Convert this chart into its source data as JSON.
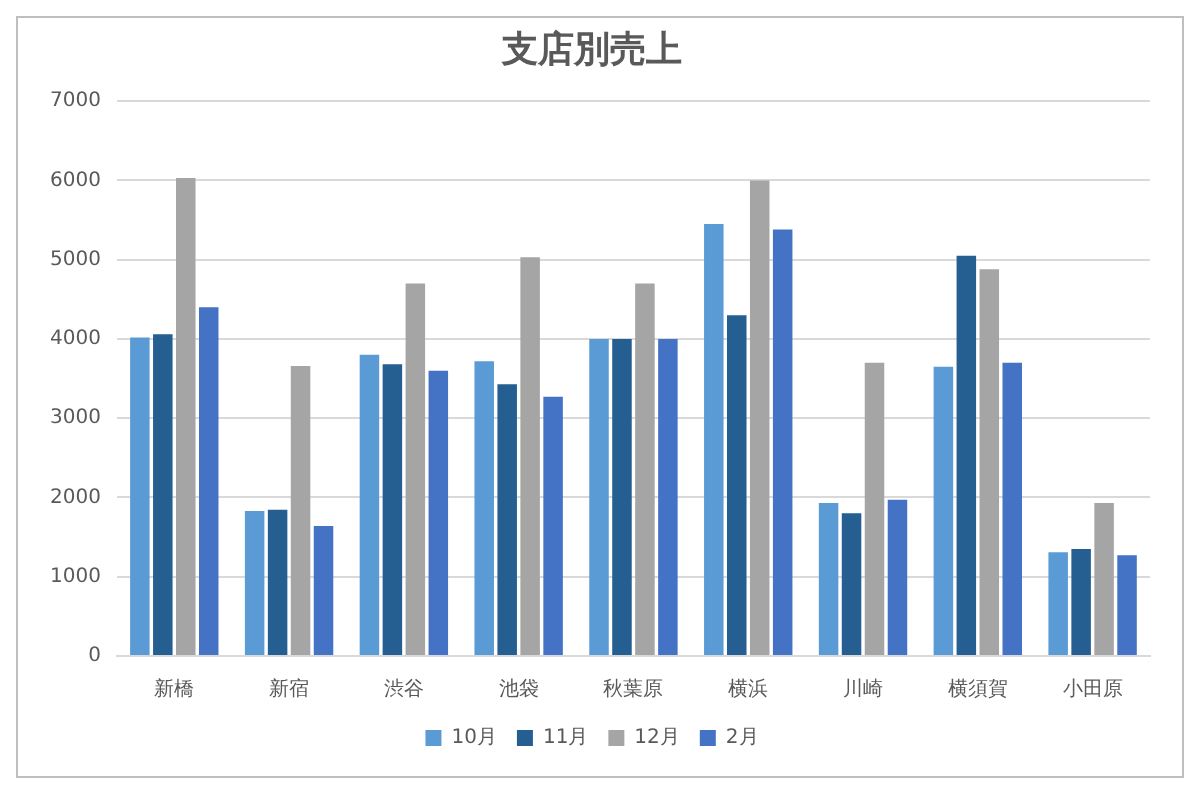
{
  "chart_data": {
    "type": "bar",
    "title": "支店別売上",
    "categories": [
      "新橋",
      "新宿",
      "渋谷",
      "池袋",
      "秋葉原",
      "横浜",
      "川崎",
      "横須賀",
      "小田原"
    ],
    "series": [
      {
        "name": "10月",
        "color": "#5b9bd5",
        "values": [
          4018,
          1830,
          3800,
          3720,
          4000,
          5450,
          1930,
          3650,
          1310
        ]
      },
      {
        "name": "11月",
        "color": "#255e91",
        "values": [
          4060,
          1844,
          3680,
          3430,
          4000,
          4300,
          1800,
          5050,
          1350
        ]
      },
      {
        "name": "12月",
        "color": "#a5a5a5",
        "values": [
          6030,
          3660,
          4700,
          5030,
          4700,
          6000,
          3700,
          4880,
          1930
        ]
      },
      {
        "name": "2月",
        "color": "#4472c4",
        "values": [
          4400,
          1639,
          3600,
          3270,
          4000,
          5380,
          1970,
          3700,
          1270
        ]
      }
    ],
    "ylim": [
      0,
      7000
    ],
    "yticks": [
      0,
      1000,
      2000,
      3000,
      4000,
      5000,
      6000,
      7000
    ],
    "grid": "y",
    "legend": "bottom"
  }
}
